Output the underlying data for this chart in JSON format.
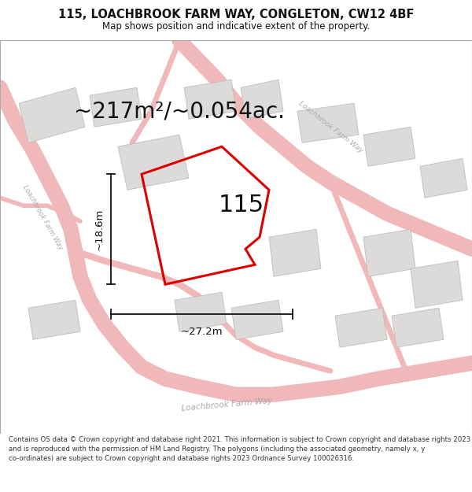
{
  "title": "115, LOACHBROOK FARM WAY, CONGLETON, CW12 4BF",
  "subtitle": "Map shows position and indicative extent of the property.",
  "area_label": "~217m²/~0.054ac.",
  "property_number": "115",
  "dim_width": "~27.2m",
  "dim_height": "~18.6m",
  "footer": "Contains OS data © Crown copyright and database right 2021. This information is subject to Crown copyright and database rights 2023 and is reproduced with the permission of HM Land Registry. The polygons (including the associated geometry, namely x, y co-ordinates) are subject to Crown copyright and database rights 2023 Ordnance Survey 100026316.",
  "map_bg": "#f7f4f4",
  "road_color": "#f0b8b8",
  "road_fill": "#e8d8d8",
  "building_color": "#dddada",
  "building_edge": "#c0bcbc",
  "property_fill": "none",
  "property_edge": "#dd0000",
  "dim_color": "#111111",
  "text_color": "#111111",
  "road_label_color": "#aaaaaa",
  "title_fontsize": 10.5,
  "subtitle_fontsize": 8.5,
  "area_label_fontsize": 20,
  "property_number_fontsize": 22,
  "dim_fontsize": 9.5,
  "footer_fontsize": 6.2
}
